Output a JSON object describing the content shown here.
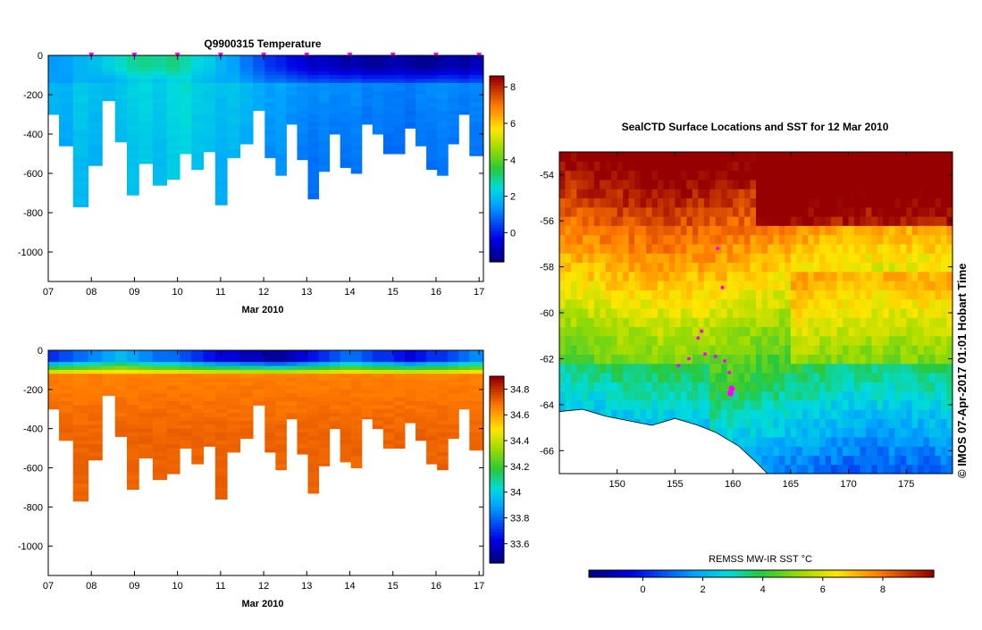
{
  "chart_data": [
    {
      "type": "heatmap",
      "title": "Q9900315  Temperature",
      "xlabel": "Mar 2010",
      "ylabel": "",
      "xlim": [
        7,
        17.1
      ],
      "ylim": [
        -1150,
        0
      ],
      "xticks": [
        "07",
        "08",
        "09",
        "10",
        "11",
        "12",
        "13",
        "14",
        "15",
        "16",
        "17"
      ],
      "yticks": [
        "0",
        "-200",
        "-400",
        "-600",
        "-800",
        "-1000"
      ],
      "colorbar": {
        "ticks": [
          "0",
          "2",
          "4",
          "6",
          "8"
        ],
        "min": -1.6,
        "max": 8.6
      },
      "surface_markers_day": [
        8.0,
        9.0,
        10.0,
        11.0,
        12.0,
        13.0,
        14.0,
        15.0,
        16.0,
        17.0
      ],
      "profiles": [
        {
          "day": 7.1,
          "depth": 300
        },
        {
          "day": 7.4,
          "depth": 460
        },
        {
          "day": 7.75,
          "depth": 770
        },
        {
          "day": 8.1,
          "depth": 560
        },
        {
          "day": 8.4,
          "depth": 230
        },
        {
          "day": 8.7,
          "depth": 440
        },
        {
          "day": 8.95,
          "depth": 710
        },
        {
          "day": 9.25,
          "depth": 550
        },
        {
          "day": 9.6,
          "depth": 660
        },
        {
          "day": 9.9,
          "depth": 630
        },
        {
          "day": 10.2,
          "depth": 500
        },
        {
          "day": 10.45,
          "depth": 580
        },
        {
          "day": 10.75,
          "depth": 490
        },
        {
          "day": 11.0,
          "depth": 760
        },
        {
          "day": 11.3,
          "depth": 520
        },
        {
          "day": 11.6,
          "depth": 450
        },
        {
          "day": 11.9,
          "depth": 280
        },
        {
          "day": 12.15,
          "depth": 520
        },
        {
          "day": 12.4,
          "depth": 610
        },
        {
          "day": 12.65,
          "depth": 350
        },
        {
          "day": 12.9,
          "depth": 530
        },
        {
          "day": 13.15,
          "depth": 730
        },
        {
          "day": 13.4,
          "depth": 590
        },
        {
          "day": 13.65,
          "depth": 400
        },
        {
          "day": 13.9,
          "depth": 570
        },
        {
          "day": 14.15,
          "depth": 600
        },
        {
          "day": 14.4,
          "depth": 350
        },
        {
          "day": 14.65,
          "depth": 400
        },
        {
          "day": 14.9,
          "depth": 500
        },
        {
          "day": 15.15,
          "depth": 500
        },
        {
          "day": 15.4,
          "depth": 370
        },
        {
          "day": 15.65,
          "depth": 460
        },
        {
          "day": 15.9,
          "depth": 580
        },
        {
          "day": 16.15,
          "depth": 610
        },
        {
          "day": 16.4,
          "depth": 450
        },
        {
          "day": 16.65,
          "depth": 300
        },
        {
          "day": 16.9,
          "depth": 510
        }
      ],
      "surface_temp": [
        1.4,
        1.5,
        1.8,
        2.0,
        2.3,
        2.6,
        2.9,
        3.0,
        2.9,
        3.1,
        2.8,
        2.4,
        2.2,
        1.8,
        1.5,
        1.0,
        0.6,
        0.2,
        0.0,
        -0.3,
        -0.5,
        -0.8,
        -0.7,
        -0.9,
        -1.1,
        -1.0,
        -1.2,
        -1.3,
        -1.1,
        -1.0,
        -1.2,
        -1.4,
        -1.3,
        -1.1,
        -1.0,
        -1.2,
        -0.9
      ],
      "deep_temp": [
        1.9,
        1.8,
        2.2,
        2.0,
        1.9,
        2.1,
        2.3,
        2.4,
        2.2,
        2.5,
        2.6,
        2.3,
        2.2,
        2.0,
        2.1,
        1.9,
        1.7,
        1.5,
        1.6,
        1.4,
        1.3,
        1.2,
        1.3,
        1.2,
        1.2,
        1.3,
        1.1,
        1.2,
        1.1,
        1.1,
        1.0,
        1.2,
        1.2,
        1.3,
        1.2,
        1.1,
        1.2
      ]
    },
    {
      "type": "heatmap",
      "title": "",
      "xlabel": "Mar 2010",
      "ylabel": "",
      "xlim": [
        7,
        17.1
      ],
      "ylim": [
        -1150,
        0
      ],
      "xticks": [
        "07",
        "08",
        "09",
        "10",
        "11",
        "12",
        "13",
        "14",
        "15",
        "16",
        "17"
      ],
      "yticks": [
        "0",
        "-200",
        "-400",
        "-600",
        "-800",
        "-1000"
      ],
      "colorbar": {
        "ticks": [
          "33.6",
          "33.8",
          "34",
          "34.2",
          "34.4",
          "34.6",
          "34.8"
        ],
        "min": 33.45,
        "max": 34.9
      },
      "surface_salinity": [
        33.7,
        33.75,
        33.8,
        33.85,
        33.9,
        33.95,
        33.9,
        33.85,
        33.8,
        33.8,
        33.75,
        33.7,
        33.65,
        33.6,
        33.6,
        33.55,
        33.55,
        33.5,
        33.5,
        33.55,
        33.6,
        33.65,
        33.7,
        33.75,
        33.8,
        33.8,
        33.75,
        33.7,
        33.7,
        33.65,
        33.6,
        33.65,
        33.7,
        33.7,
        33.75,
        33.8,
        33.85
      ],
      "deep_salinity": 34.72
    },
    {
      "type": "heatmap",
      "title": "SealCTD Surface Locations and SST for 12 Mar 2010",
      "xlabel": "",
      "ylabel": "",
      "xlim": [
        145,
        179
      ],
      "ylim": [
        -67,
        -53
      ],
      "xticks": [
        "150",
        "155",
        "160",
        "165",
        "170",
        "175"
      ],
      "yticks": [
        "-54",
        "-56",
        "-58",
        "-60",
        "-62",
        "-64",
        "-66"
      ],
      "colorbar": {
        "label": "REMSS MW-IR SST °C",
        "ticks": [
          "0",
          "2",
          "4",
          "6",
          "8"
        ],
        "min": -1.8,
        "max": 9.7
      },
      "seal_track": [
        {
          "lon": 155.3,
          "lat": -62.3
        },
        {
          "lon": 156.2,
          "lat": -62.0
        },
        {
          "lon": 157.0,
          "lat": -61.1
        },
        {
          "lon": 157.3,
          "lat": -60.8
        },
        {
          "lon": 157.6,
          "lat": -61.8
        },
        {
          "lon": 158.5,
          "lat": -61.9
        },
        {
          "lon": 159.3,
          "lat": -62.1
        },
        {
          "lon": 159.7,
          "lat": -62.6
        },
        {
          "lon": 159.9,
          "lat": -63.3
        },
        {
          "lon": 159.8,
          "lat": -63.5
        },
        {
          "lon": 159.1,
          "lat": -58.9
        },
        {
          "lon": 158.7,
          "lat": -57.2
        }
      ]
    }
  ],
  "copyright": "© IMOS 07-Apr-2017 01:01 Hobart Time",
  "colors": {
    "marker": "#ff00ff",
    "land": "#ffffff",
    "axis": "#000000"
  }
}
